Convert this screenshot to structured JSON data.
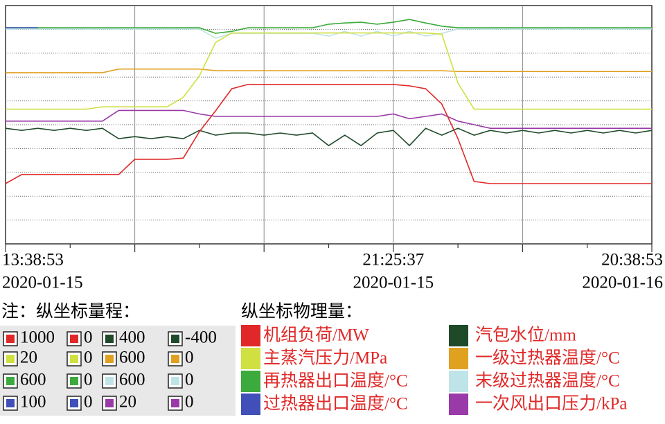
{
  "chart_data": {
    "type": "line",
    "categories": [
      "13:38:53",
      null,
      null,
      null,
      null,
      null,
      null,
      null,
      null,
      null,
      null,
      null,
      null,
      null,
      null,
      null,
      null,
      null,
      null,
      null,
      null,
      null,
      null,
      null,
      "21:25:37",
      null,
      null,
      null,
      null,
      null,
      null,
      null,
      null,
      null,
      null,
      null,
      null,
      null,
      null,
      null,
      "20:38:53"
    ],
    "category_dates": [
      "2020-01-15",
      null,
      null,
      null,
      null,
      null,
      null,
      null,
      null,
      null,
      null,
      null,
      null,
      null,
      null,
      null,
      null,
      null,
      null,
      null,
      null,
      null,
      null,
      null,
      "2020-01-15",
      null,
      null,
      null,
      null,
      null,
      null,
      null,
      null,
      null,
      null,
      null,
      null,
      null,
      null,
      null,
      "2020-01-16"
    ],
    "range_title": "注：纵坐标量程：",
    "legend_title": "纵坐标物理量：",
    "grid": true,
    "series": [
      {
        "name": "机组负荷/MW",
        "color": "#e02828",
        "ylim": [
          0,
          1000
        ],
        "values": [
          253,
          291,
          291,
          291,
          291,
          291,
          291,
          291,
          355,
          355,
          355,
          360,
          471,
          558,
          651,
          669,
          669,
          669,
          669,
          669,
          669,
          669,
          669,
          669,
          669,
          663,
          651,
          587,
          442,
          262,
          253,
          253,
          253,
          253,
          253,
          253,
          253,
          253,
          253,
          253,
          253
        ]
      },
      {
        "name": "主蒸汽压力/MPa",
        "color": "#cfe040",
        "ylim": [
          0,
          20
        ],
        "values": [
          11.3,
          11.3,
          11.3,
          11.3,
          11.3,
          11.3,
          11.5,
          11.5,
          11.5,
          11.5,
          11.5,
          12.3,
          14.1,
          16.9,
          17.7,
          17.7,
          17.7,
          17.7,
          17.7,
          17.7,
          17.7,
          17.7,
          17.7,
          17.7,
          17.7,
          17.7,
          17.7,
          17.6,
          13.5,
          11.3,
          11.3,
          11.3,
          11.3,
          11.3,
          11.3,
          11.3,
          11.3,
          11.3,
          11.3,
          11.3,
          11.3
        ]
      },
      {
        "name": "再热器出口温度/°C",
        "color": "#3caa3c",
        "ylim": [
          0,
          600
        ],
        "values": [
          544,
          544,
          544,
          544,
          544,
          544,
          544,
          544,
          544,
          544,
          544,
          544,
          544,
          530,
          535,
          544,
          544,
          544,
          544,
          544,
          553,
          556,
          558,
          553,
          558,
          565,
          556,
          548,
          544,
          544,
          544,
          544,
          544,
          544,
          544,
          544,
          544,
          544,
          544,
          544,
          544
        ]
      },
      {
        "name": "过热器出口温度/°C",
        "color": "#4050b8",
        "ylim": [
          0,
          100
        ],
        "values": [
          90.7,
          90.7,
          90.7,
          null,
          null,
          null,
          null,
          null,
          null,
          null,
          null,
          null,
          null,
          null,
          null,
          null,
          null,
          null,
          null,
          null,
          null,
          null,
          null,
          null,
          null,
          null,
          null,
          null,
          null,
          null,
          null,
          null,
          null,
          null,
          null,
          null,
          null,
          null,
          null,
          null,
          null
        ]
      },
      {
        "name": "汽包水位/mm",
        "color": "#1f4a2a",
        "ylim": [
          -400,
          400
        ],
        "values": [
          -12,
          -19,
          -12,
          -19,
          -12,
          -19,
          -12,
          -47,
          -40,
          -47,
          -40,
          -47,
          -19,
          -35,
          -28,
          -28,
          -35,
          -28,
          -35,
          -28,
          -70,
          -35,
          -70,
          -28,
          -19,
          -70,
          -12,
          -35,
          -12,
          -35,
          -19,
          -28,
          -19,
          -28,
          -19,
          -28,
          -19,
          -28,
          -19,
          -28,
          -19
        ]
      },
      {
        "name": "一级过热器温度/°C",
        "color": "#e0a020",
        "ylim": [
          0,
          600
        ],
        "values": [
          431,
          431,
          431,
          431,
          431,
          431,
          431,
          440,
          440,
          440,
          440,
          440,
          440,
          436,
          436,
          436,
          436,
          436,
          436,
          436,
          436,
          436,
          436,
          436,
          436,
          436,
          436,
          436,
          434,
          434,
          434,
          434,
          434,
          434,
          434,
          434,
          434,
          434,
          434,
          434,
          434
        ]
      },
      {
        "name": "末级过热器温度/°C",
        "color": "#bfe4e8",
        "ylim": [
          0,
          600
        ],
        "values": [
          541,
          541,
          541,
          541,
          541,
          541,
          541,
          541,
          541,
          541,
          541,
          541,
          541,
          518,
          530,
          530,
          530,
          530,
          530,
          530,
          523,
          535,
          523,
          535,
          523,
          535,
          523,
          530,
          541,
          541,
          541,
          541,
          541,
          541,
          541,
          541,
          541,
          541,
          541,
          541,
          541
        ]
      },
      {
        "name": "一次风出口压力/kPa",
        "color": "#9a3aa8",
        "ylim": [
          0,
          20
        ],
        "values": [
          10.3,
          10.3,
          10.3,
          10.3,
          10.3,
          10.3,
          10.3,
          11.2,
          11.2,
          11.2,
          11.2,
          11.2,
          10.9,
          10.7,
          10.7,
          10.7,
          10.7,
          10.7,
          10.7,
          10.7,
          10.7,
          10.7,
          10.7,
          10.7,
          10.9,
          10.5,
          10.7,
          10.9,
          10.3,
          10.0,
          9.7,
          9.7,
          9.7,
          9.7,
          9.7,
          9.7,
          9.7,
          9.7,
          9.7,
          9.7,
          9.7
        ]
      }
    ]
  }
}
